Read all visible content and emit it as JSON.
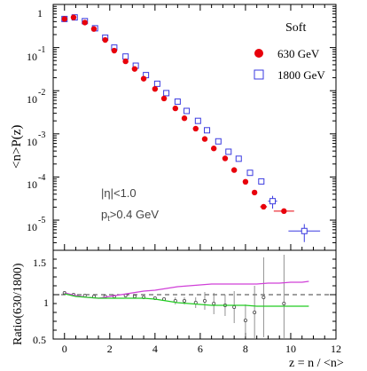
{
  "chart_data": [
    {
      "type": "scatter",
      "panel": "top",
      "title": "",
      "ylabel": "<n>P(z)",
      "yscale": "log",
      "xlim": [
        -0.5,
        12
      ],
      "ylim": [
        2e-06,
        1
      ],
      "grid": false,
      "legend": {
        "title": "Soft",
        "placement": "top-right"
      },
      "y_tick_labels": {
        "y1": "1",
        "y0": "10",
        "y0e": "-1",
        "y1b": "10",
        "y1e": "-2",
        "y2b": "10",
        "y2e": "-3",
        "y3b": "10",
        "y3e": "-4",
        "y4b": "10",
        "y4e": "-5"
      },
      "annotations": {
        "eta_cut": "|η|<1.0",
        "pt_cut": "p",
        "pt_sub": "t",
        "pt_rest": ">0.4 GeV"
      },
      "series": [
        {
          "name": "630   GeV",
          "marker": "filled-circle",
          "color": "#e8000b",
          "x": [
            0.0,
            0.4,
            0.9,
            1.3,
            1.8,
            2.2,
            2.7,
            3.1,
            3.5,
            4.0,
            4.4,
            4.9,
            5.3,
            5.8,
            6.2,
            6.6,
            7.1,
            7.5,
            8.0,
            8.4,
            8.8,
            9.7
          ],
          "y": [
            0.46,
            0.5,
            0.38,
            0.27,
            0.15,
            0.085,
            0.048,
            0.032,
            0.019,
            0.011,
            0.0066,
            0.0039,
            0.0023,
            0.00132,
            0.00076,
            0.00046,
            0.00027,
            0.000145,
            7.75e-05,
            4.37e-05,
            2.04e-05,
            1.62e-05
          ],
          "x_err": [
            0,
            0,
            0,
            0,
            0,
            0,
            0,
            0,
            0,
            0,
            0,
            0,
            0,
            0,
            0,
            0,
            0,
            0,
            0,
            0,
            0.15,
            0.45
          ]
        },
        {
          "name": "1800 GeV",
          "marker": "open-square",
          "color": "#3a3ae0",
          "x": [
            0.0,
            0.45,
            0.9,
            1.35,
            1.8,
            2.2,
            2.7,
            3.15,
            3.6,
            4.1,
            4.5,
            5.0,
            5.4,
            5.9,
            6.3,
            6.8,
            7.25,
            7.7,
            8.2,
            8.7,
            9.2,
            10.6
          ],
          "y": [
            0.46,
            0.5,
            0.41,
            0.28,
            0.17,
            0.1,
            0.062,
            0.038,
            0.023,
            0.0145,
            0.0088,
            0.0056,
            0.0034,
            0.002,
            0.00121,
            0.00067,
            0.000385,
            0.000265,
            0.000125,
            7.9e-05,
            2.75e-05,
            5.6e-06
          ],
          "x_err": [
            0,
            0,
            0,
            0,
            0,
            0,
            0,
            0,
            0,
            0,
            0,
            0,
            0,
            0,
            0,
            0,
            0,
            0,
            0,
            0,
            0.2,
            0.7
          ],
          "y_err": [
            0,
            0,
            0,
            0,
            0,
            0,
            0,
            0,
            0,
            0,
            0,
            0,
            0,
            0,
            0,
            0,
            0,
            0,
            0,
            0,
            9e-06,
            2.5e-06
          ]
        }
      ]
    },
    {
      "type": "line",
      "panel": "bottom",
      "ylabel": "Ratio(630/1800)",
      "xlabel": "z = n / <n>",
      "xlim": [
        -0.5,
        12
      ],
      "ylim": [
        0.5,
        1.5
      ],
      "x_ticks": [
        0,
        2,
        4,
        6,
        8,
        10,
        12
      ],
      "y_tick_labels": [
        "0.5",
        "1",
        "1.5"
      ],
      "reference_line": 1.0,
      "series": [
        {
          "name": "",
          "kind": "points",
          "color": "#444444",
          "x": [
            0.0,
            0.4,
            0.9,
            1.3,
            1.8,
            2.2,
            2.7,
            3.1,
            3.5,
            4.0,
            4.4,
            4.9,
            5.3,
            5.8,
            6.2,
            6.6,
            7.1,
            7.5,
            8.0,
            8.4,
            8.8,
            9.7
          ],
          "y": [
            1.02,
            1.0,
            0.99,
            0.98,
            0.98,
            0.98,
            0.99,
            0.98,
            0.97,
            0.96,
            0.95,
            0.93,
            0.93,
            0.91,
            0.93,
            0.9,
            0.88,
            0.86,
            0.71,
            0.8,
            0.97,
            0.9
          ],
          "y_err": [
            0.01,
            0.01,
            0.01,
            0.01,
            0.01,
            0.01,
            0.01,
            0.01,
            0.01,
            0.01,
            0.02,
            0.04,
            0.04,
            0.06,
            0.1,
            0.12,
            0.12,
            0.18,
            0.18,
            0.3,
            0.45,
            0.55
          ]
        },
        {
          "name": "",
          "kind": "curve",
          "color": "#d040d8",
          "x": [
            0.0,
            0.5,
            1.0,
            1.5,
            2.0,
            2.5,
            3.0,
            3.5,
            4.0,
            4.5,
            5.0,
            5.5,
            6.0,
            6.5,
            7.0,
            7.5,
            8.0,
            8.5,
            9.0,
            9.5,
            10.0,
            10.5,
            10.8
          ],
          "y": [
            1.02,
            0.99,
            0.97,
            0.96,
            0.98,
            1.0,
            1.02,
            1.04,
            1.05,
            1.07,
            1.09,
            1.1,
            1.11,
            1.12,
            1.12,
            1.12,
            1.12,
            1.12,
            1.13,
            1.13,
            1.14,
            1.14,
            1.15
          ]
        },
        {
          "name": "",
          "kind": "curve",
          "color": "#22cc22",
          "x": [
            0.0,
            0.5,
            1.0,
            1.5,
            2.0,
            2.5,
            3.0,
            3.5,
            4.0,
            4.5,
            5.0,
            5.5,
            6.0,
            6.5,
            7.0,
            7.5,
            8.0,
            8.5,
            9.0,
            9.5,
            10.0,
            10.5,
            10.8
          ],
          "y": [
            1.01,
            0.98,
            0.97,
            0.96,
            0.96,
            0.96,
            0.96,
            0.96,
            0.95,
            0.93,
            0.91,
            0.9,
            0.89,
            0.88,
            0.88,
            0.88,
            0.88,
            0.87,
            0.87,
            0.87,
            0.87,
            0.87,
            0.87
          ]
        }
      ]
    }
  ]
}
